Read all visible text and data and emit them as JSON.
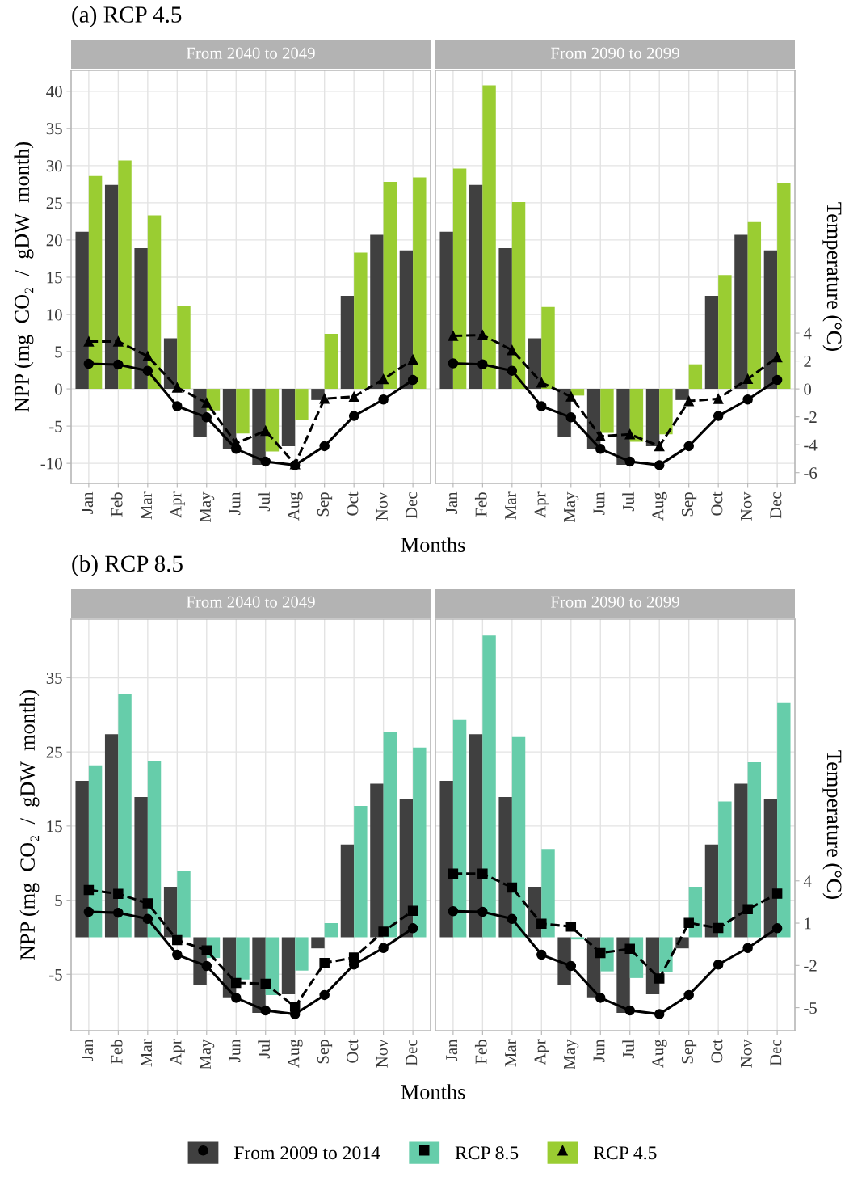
{
  "chart_data": [
    {
      "type": "bar",
      "title": "From 2040 to 2049",
      "xlabel": "Months",
      "ylabel": "NPP (mg  CO₂  /  gDW  month)",
      "annotations": [
        "(a) RCP 4.5"
      ],
      "legend": "bottom",
      "categories": [
        "Jan",
        "Feb",
        "Mar",
        "Apr",
        "May",
        "Jun",
        "Jul",
        "Aug",
        "Sep",
        "Oct",
        "Nov",
        "Dec"
      ],
      "series": [
        {
          "name": "From 2009 to 2014",
          "color": "#404040",
          "values": [
            21.1,
            27.4,
            18.9,
            6.8,
            -6.4,
            -8.1,
            -10.2,
            -7.7,
            -1.5,
            12.5,
            20.7,
            18.6
          ]
        },
        {
          "name": "RCP 4.5",
          "color": "#9acd32",
          "values": [
            28.6,
            30.7,
            23.3,
            11.1,
            -2.9,
            -6.0,
            -8.4,
            -4.2,
            7.4,
            18.3,
            27.8,
            28.4
          ]
        },
        {
          "type": "line",
          "axis": "y2",
          "color": "#000000",
          "marker": "circle",
          "line_style": "solid",
          "values": [
            1.8,
            1.74,
            1.3,
            -1.24,
            -2.04,
            -4.3,
            -5.2,
            -5.46,
            -4.1,
            -1.94,
            -0.76,
            0.64
          ]
        },
        {
          "type": "line",
          "axis": "y2",
          "color": "#000000",
          "marker": "triangle",
          "line_style": "dashed",
          "values": [
            3.4,
            3.4,
            2.34,
            0.1,
            -1.0,
            -3.9,
            -3.0,
            -5.4,
            -0.7,
            -0.56,
            0.7,
            2.1
          ]
        }
      ],
      "ylim": [
        -12.7,
        42.8
      ],
      "yticks": [
        -10,
        -5,
        0,
        5,
        10,
        15,
        20,
        25,
        30,
        35,
        40
      ],
      "y2lim": [
        -6.77,
        22.83
      ],
      "tick_labels": [
        "x",
        "y"
      ],
      "grid": true
    },
    {
      "type": "bar",
      "title": "From 2040 to 2049",
      "xlabel": "Months",
      "ylabel": "NPP (mg  CO₂  /  gDW  month)",
      "annotations": [
        "(b) RCP 8.5"
      ],
      "categories": [
        "Jan",
        "Feb",
        "Mar",
        "Apr",
        "May",
        "Jun",
        "Jul",
        "Aug",
        "Sep",
        "Oct",
        "Nov",
        "Dec"
      ],
      "series": [
        {
          "name": "From 2009 to 2014",
          "color": "#404040",
          "values": [
            21.1,
            27.4,
            18.9,
            6.8,
            -6.4,
            -8.1,
            -10.2,
            -7.7,
            -1.5,
            12.5,
            20.7,
            18.6
          ]
        },
        {
          "name": "RCP 8.5",
          "color": "#66cdaa",
          "values": [
            23.2,
            32.8,
            23.7,
            9.0,
            -2.8,
            -5.7,
            -7.8,
            -4.5,
            1.9,
            17.7,
            27.7,
            25.6
          ]
        },
        {
          "type": "line",
          "axis": "y2",
          "color": "#000000",
          "marker": "circle",
          "line_style": "solid",
          "values": [
            1.8,
            1.74,
            1.3,
            -1.24,
            -2.04,
            -4.3,
            -5.2,
            -5.46,
            -4.1,
            -1.94,
            -0.76,
            0.64
          ]
        },
        {
          "type": "line",
          "axis": "y2",
          "color": "#000000",
          "marker": "square",
          "line_style": "dashed",
          "values": [
            3.36,
            3.08,
            2.41,
            -0.2,
            -0.93,
            -3.24,
            -3.3,
            -4.94,
            -1.82,
            -1.44,
            0.4,
            1.88
          ]
        }
      ],
      "ylim": [
        -12.6,
        42.9
      ],
      "yticks": [
        -5,
        5,
        15,
        25,
        35
      ],
      "y2lim": [
        -6.63,
        22.58
      ],
      "tick_labels": [
        "x",
        "y"
      ],
      "grid": true
    },
    {
      "type": "bar",
      "title": "From 2090 to 2099",
      "y2label": "Temperature (°C)",
      "categories": [
        "Jan",
        "Feb",
        "Mar",
        "Apr",
        "May",
        "Jun",
        "Jul",
        "Aug",
        "Sep",
        "Oct",
        "Nov",
        "Dec"
      ],
      "series": [
        {
          "name": "From 2009 to 2014",
          "color": "#404040",
          "values": [
            21.1,
            27.4,
            18.9,
            6.8,
            -6.4,
            -8.1,
            -10.2,
            -7.7,
            -1.5,
            12.5,
            20.7,
            18.6
          ]
        },
        {
          "name": "RCP 4.5",
          "color": "#9acd32",
          "values": [
            29.6,
            40.8,
            25.1,
            11.0,
            -0.9,
            -5.9,
            -7.1,
            -6.1,
            3.3,
            15.3,
            22.4,
            27.6
          ]
        },
        {
          "type": "line",
          "axis": "y2",
          "color": "#000000",
          "marker": "circle",
          "line_style": "solid",
          "values": [
            1.83,
            1.76,
            1.3,
            -1.24,
            -2.04,
            -4.3,
            -5.2,
            -5.46,
            -4.1,
            -1.94,
            -0.76,
            0.64
          ]
        },
        {
          "type": "line",
          "axis": "y2",
          "color": "#000000",
          "marker": "triangle",
          "line_style": "dashed",
          "values": [
            3.8,
            3.86,
            2.78,
            0.45,
            -0.55,
            -3.4,
            -3.25,
            -4.1,
            -0.87,
            -0.71,
            0.71,
            2.27
          ]
        }
      ],
      "ylim": [
        -12.7,
        42.8
      ],
      "y2lim": [
        -6.77,
        22.83
      ],
      "y2ticks": [
        -6,
        -4,
        -2,
        0,
        2,
        4
      ],
      "tick_labels": [
        "x",
        "y2"
      ],
      "grid": true
    },
    {
      "type": "bar",
      "title": "From 2090 to 2099",
      "y2label": "Temperature (°C)",
      "categories": [
        "Jan",
        "Feb",
        "Mar",
        "Apr",
        "May",
        "Jun",
        "Jul",
        "Aug",
        "Sep",
        "Oct",
        "Nov",
        "Dec"
      ],
      "series": [
        {
          "name": "From 2009 to 2014",
          "color": "#404040",
          "values": [
            21.1,
            27.4,
            18.9,
            6.8,
            -6.4,
            -8.1,
            -10.2,
            -7.7,
            -1.5,
            12.5,
            20.7,
            18.6
          ]
        },
        {
          "name": "RCP 8.5",
          "color": "#66cdaa",
          "values": [
            29.3,
            40.7,
            27.0,
            11.9,
            -0.3,
            -4.6,
            -5.5,
            -4.7,
            6.8,
            18.3,
            23.6,
            31.6
          ]
        },
        {
          "type": "line",
          "axis": "y2",
          "color": "#000000",
          "marker": "circle",
          "line_style": "solid",
          "values": [
            1.85,
            1.8,
            1.3,
            -1.24,
            -2.04,
            -4.3,
            -5.2,
            -5.46,
            -4.1,
            -1.94,
            -0.76,
            0.64
          ]
        },
        {
          "type": "line",
          "axis": "y2",
          "color": "#000000",
          "marker": "square",
          "line_style": "dashed",
          "values": [
            4.52,
            4.52,
            3.53,
            0.96,
            0.76,
            -1.12,
            -0.82,
            -2.93,
            1.02,
            0.66,
            1.99,
            3.09
          ]
        }
      ],
      "ylim": [
        -12.6,
        42.9
      ],
      "y2lim": [
        -6.63,
        22.58
      ],
      "y2ticks": [
        -5,
        -2,
        1,
        4
      ],
      "tick_labels": [
        "x",
        "y2"
      ],
      "grid": true
    }
  ]
}
